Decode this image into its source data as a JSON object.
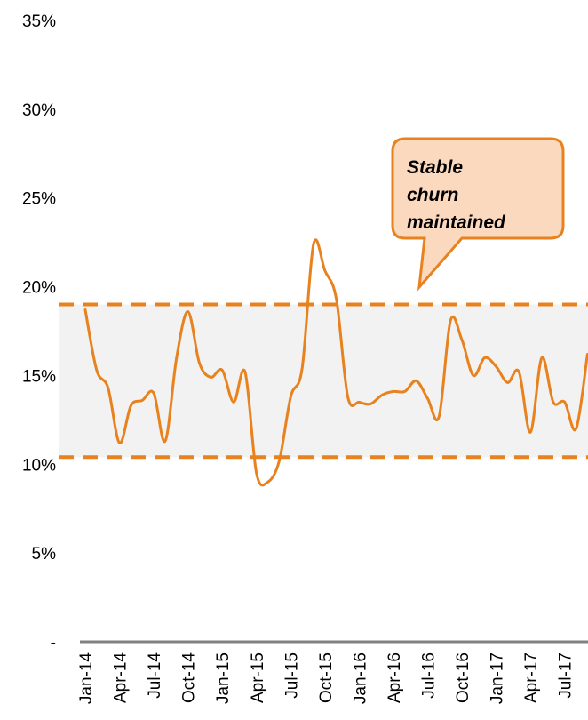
{
  "chart_data": {
    "type": "line",
    "title": "",
    "xlabel": "",
    "ylabel": "",
    "ylim": [
      0,
      0.35
    ],
    "y_tick_values": [
      0,
      0.05,
      0.1,
      0.15,
      0.2,
      0.25,
      0.3,
      0.35
    ],
    "y_tick_labels": [
      "-",
      "5%",
      "10%",
      "15%",
      "20%",
      "25%",
      "30%",
      "35%"
    ],
    "x_tick_labels": [
      "Jan-14",
      "Apr-14",
      "Jul-14",
      "Oct-14",
      "Jan-15",
      "Apr-15",
      "Jul-15",
      "Oct-15",
      "Jan-16",
      "Apr-16",
      "Jul-16",
      "Oct-16",
      "Jan-17",
      "Apr-17",
      "Jul-17"
    ],
    "x": [
      "Jan-14",
      "Feb-14",
      "Mar-14",
      "Apr-14",
      "May-14",
      "Jun-14",
      "Jul-14",
      "Aug-14",
      "Sep-14",
      "Oct-14",
      "Nov-14",
      "Dec-14",
      "Jan-15",
      "Feb-15",
      "Mar-15",
      "Apr-15",
      "May-15",
      "Jun-15",
      "Jul-15",
      "Aug-15",
      "Sep-15",
      "Oct-15",
      "Nov-15",
      "Dec-15",
      "Jan-16",
      "Feb-16",
      "Mar-16",
      "Apr-16",
      "May-16",
      "Jun-16",
      "Jul-16",
      "Aug-16",
      "Sep-16",
      "Oct-16",
      "Nov-16",
      "Dec-16",
      "Jan-17",
      "Feb-17",
      "Mar-17",
      "Apr-17",
      "May-17",
      "Jun-17",
      "Jul-17",
      "Aug-17",
      "Sep-17"
    ],
    "series": [
      {
        "name": "",
        "color": "#e8821e",
        "values": [
          0.187,
          0.153,
          0.143,
          0.112,
          0.133,
          0.136,
          0.14,
          0.113,
          0.16,
          0.186,
          0.157,
          0.149,
          0.153,
          0.135,
          0.152,
          0.095,
          0.09,
          0.102,
          0.138,
          0.154,
          0.224,
          0.209,
          0.193,
          0.138,
          0.135,
          0.134,
          0.139,
          0.141,
          0.141,
          0.147,
          0.137,
          0.127,
          0.181,
          0.17,
          0.15,
          0.16,
          0.155,
          0.146,
          0.152,
          0.118,
          0.16,
          0.135,
          0.135,
          0.12,
          0.162
        ]
      }
    ],
    "band": {
      "lower": 0.104,
      "upper": 0.19,
      "fill": "#f2f2f2",
      "line_color": "#e8821e"
    },
    "annotation": {
      "lines": [
        "Stable",
        "churn",
        "maintained"
      ],
      "fill": "#fbd9bf",
      "border": "#e8821e"
    },
    "axis_color": "#808080",
    "grid": false,
    "legend": "none"
  }
}
